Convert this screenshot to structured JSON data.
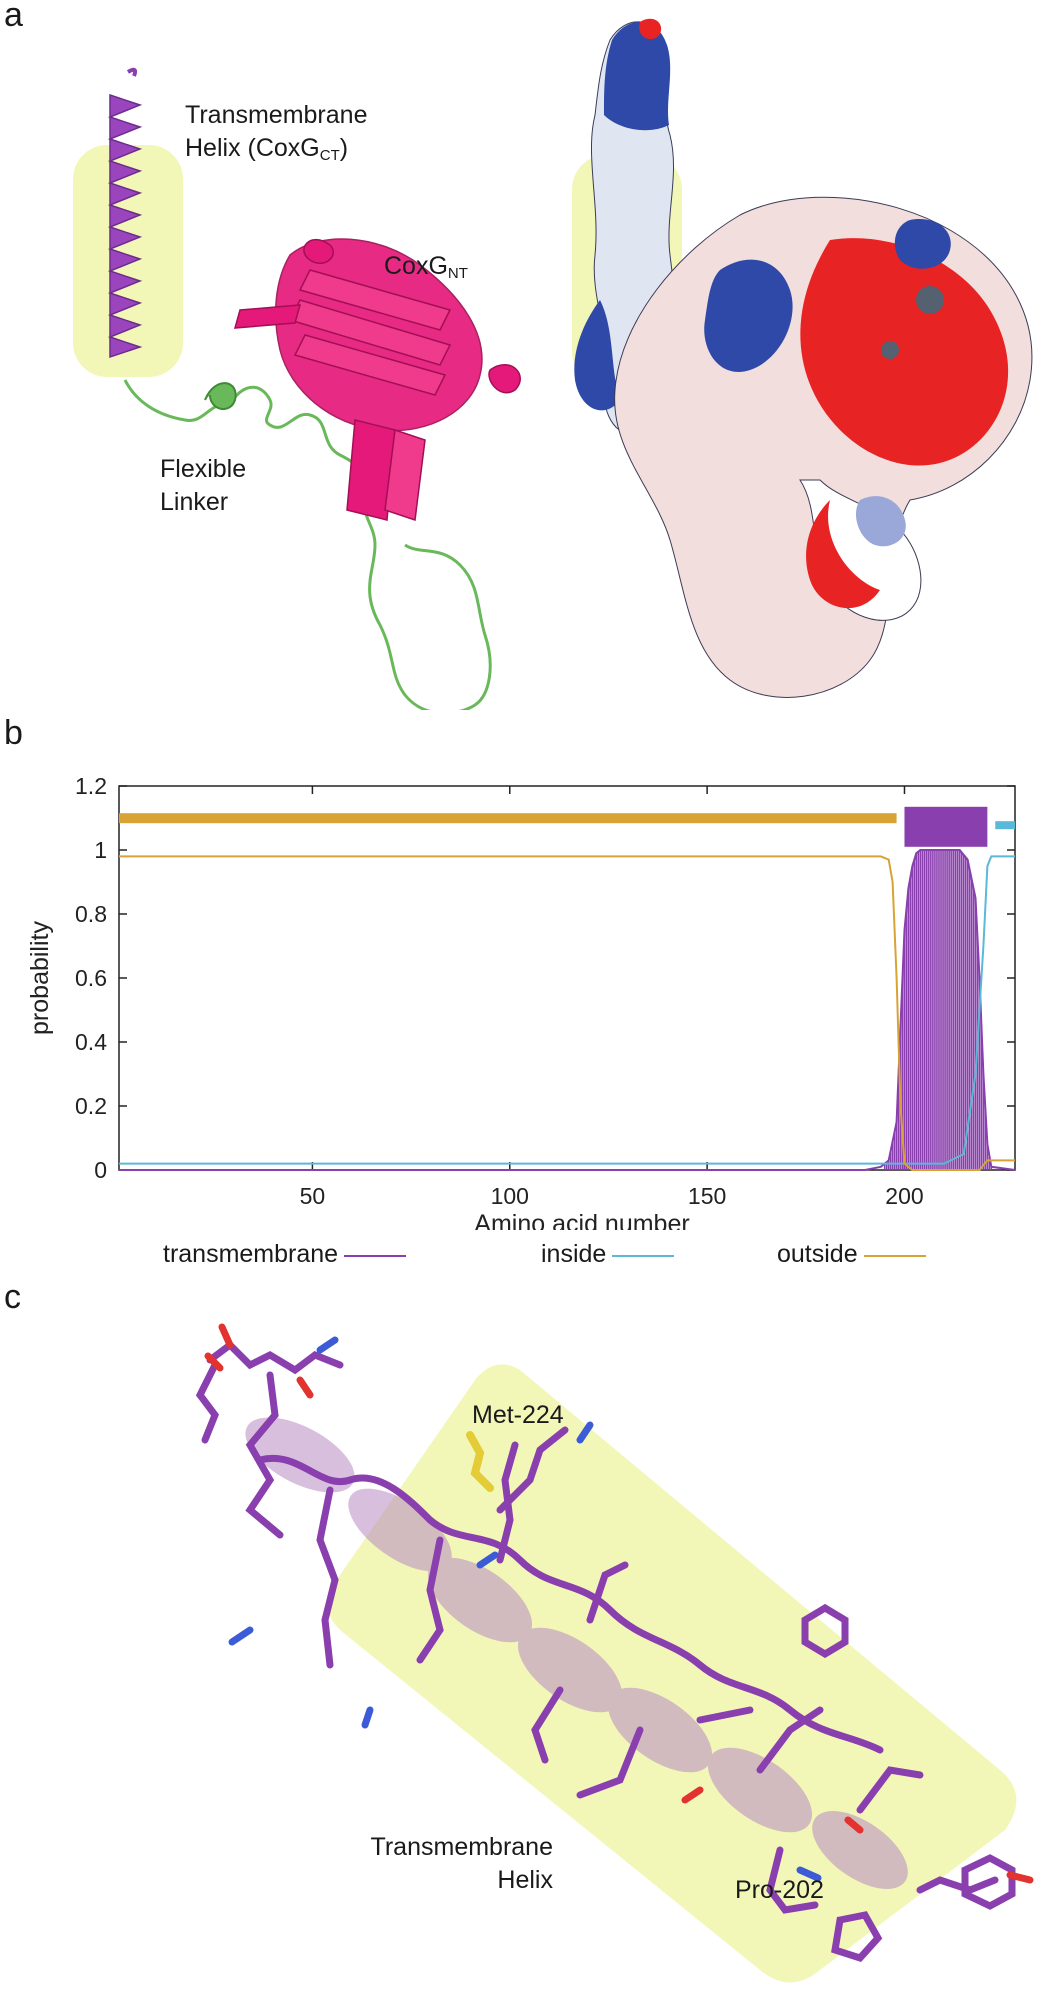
{
  "panels": {
    "a": "a",
    "b": "b",
    "c": "c"
  },
  "panel_a": {
    "tm_helix_label_line1": "Transmembrane",
    "tm_helix_label_line2_main": "Helix (CoxG",
    "tm_helix_label_line2_sub": "CT",
    "tm_helix_label_line2_end": ")",
    "coxg_nt_main": "CoxG",
    "coxg_nt_sub": "NT",
    "linker_line1": "Flexible",
    "linker_line2": "Linker"
  },
  "panel_c": {
    "met_label": "Met-224",
    "pro_label": "Pro-202",
    "tm_label_line1": "Transmembrane",
    "tm_label_line2": "Helix"
  },
  "colors": {
    "transmembrane": "#8a3fae",
    "inside": "#5ab8d8",
    "outside": "#d9a235",
    "helix_highlight": "#f2f7b8",
    "nt_domain": "#e5197a",
    "linker": "#69b85a"
  },
  "chart_data": {
    "type": "line",
    "xlabel": "Amino acid number",
    "ylabel": "probability",
    "xlim": [
      1,
      228
    ],
    "ylim": [
      0,
      1.2
    ],
    "x_ticks": [
      50,
      100,
      150,
      200
    ],
    "y_ticks": [
      "0",
      "0.2",
      "0.4",
      "0.6",
      "0.8",
      "1",
      "1.2"
    ],
    "y_tick_values": [
      0,
      0.2,
      0.4,
      0.6,
      0.8,
      1.0,
      1.2
    ],
    "legend_position": "bottom",
    "series": [
      {
        "name": "transmembrane",
        "x": [
          1,
          190,
          194,
          196,
          198,
          199,
          200,
          201,
          202,
          203,
          204,
          206,
          210,
          214,
          216,
          218,
          219,
          220,
          221,
          222,
          228
        ],
        "y": [
          0,
          0,
          0.01,
          0.03,
          0.15,
          0.45,
          0.75,
          0.88,
          0.95,
          0.99,
          1.0,
          1.0,
          1.0,
          1.0,
          0.97,
          0.85,
          0.6,
          0.3,
          0.08,
          0.01,
          0
        ]
      },
      {
        "name": "inside",
        "x": [
          1,
          196,
          210,
          215,
          218,
          220,
          221,
          222,
          228
        ],
        "y": [
          0.02,
          0.02,
          0.02,
          0.05,
          0.3,
          0.7,
          0.95,
          0.98,
          0.98
        ]
      },
      {
        "name": "outside",
        "x": [
          1,
          194,
          196,
          197,
          198,
          199,
          200,
          202,
          210,
          219,
          221,
          228
        ],
        "y": [
          0.98,
          0.98,
          0.97,
          0.9,
          0.6,
          0.2,
          0.02,
          0.0,
          0.0,
          0.0,
          0.03,
          0.03
        ]
      }
    ],
    "topology_bars": [
      {
        "series": "outside",
        "start": 1,
        "end": 198
      },
      {
        "series": "transmembrane",
        "start": 200,
        "end": 221
      },
      {
        "series": "inside",
        "start": 223,
        "end": 228
      }
    ]
  }
}
